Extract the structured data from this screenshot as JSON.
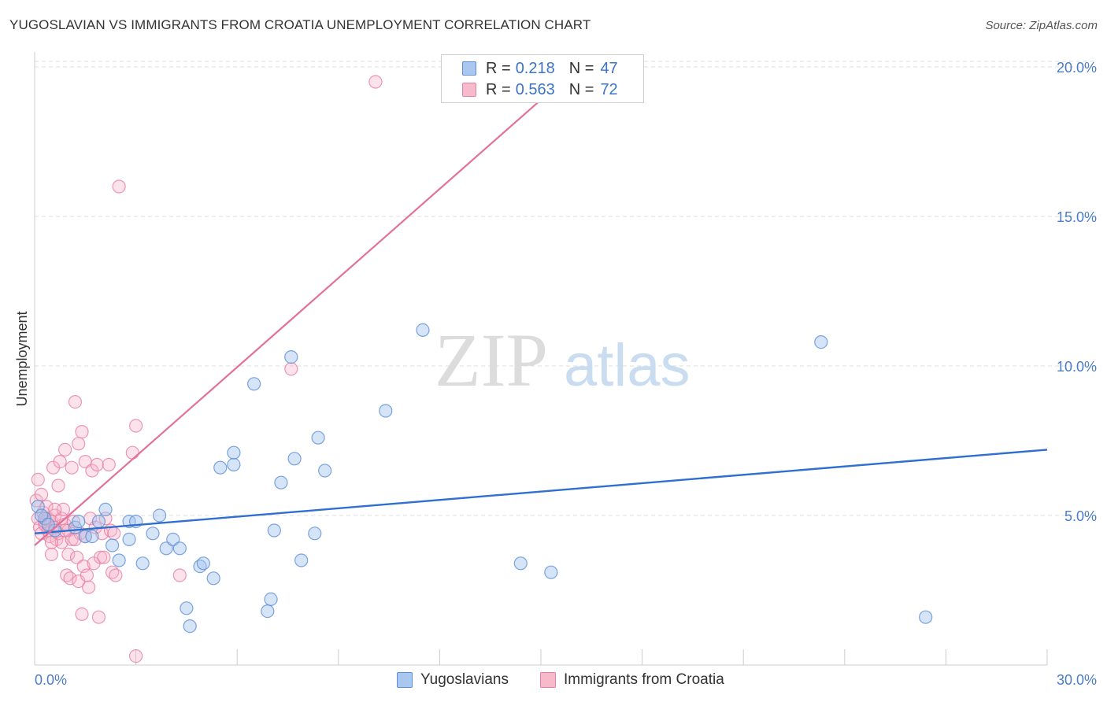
{
  "header": {
    "title": "YUGOSLAVIAN VS IMMIGRANTS FROM CROATIA UNEMPLOYMENT CORRELATION CHART",
    "source": "Source: ZipAtlas.com"
  },
  "watermark": {
    "part1": "ZIP",
    "part2": "atlas"
  },
  "legend": {
    "rows": [
      {
        "r_label": "R =",
        "r_value": "0.218",
        "n_label": "N =",
        "n_value": "47",
        "color": "#a9c7ef",
        "border": "#5b8fd6"
      },
      {
        "r_label": "R =",
        "r_value": "0.563",
        "n_label": "N =",
        "n_value": "72",
        "color": "#f7b9cc",
        "border": "#e87fa0"
      }
    ]
  },
  "bottom_legend": {
    "series1": "Yugoslavians",
    "series2": "Immigrants from Croatia"
  },
  "colors": {
    "blue_fill": "rgba(163,196,238,0.45)",
    "blue_stroke": "#5b8fd6",
    "blue_line": "#2f6fcf",
    "pink_fill": "rgba(246,176,198,0.35)",
    "pink_stroke": "#e57fa2",
    "pink_line": "#e2709a",
    "grid": "#dddddd",
    "tick_text": "#4a7cc9"
  },
  "chart_data": {
    "type": "scatter",
    "title": "YUGOSLAVIAN VS IMMIGRANTS FROM CROATIA UNEMPLOYMENT CORRELATION CHART",
    "xlabel": "",
    "ylabel": "Unemployment",
    "xlim": [
      0,
      30
    ],
    "ylim": [
      0,
      20.5
    ],
    "x_tick_labels": [
      "0.0%",
      "30.0%"
    ],
    "y_ticks": [
      5,
      10,
      15,
      20
    ],
    "y_tick_labels": [
      "5.0%",
      "10.0%",
      "15.0%",
      "20.0%"
    ],
    "grid": true,
    "legend_position": "top-center",
    "series": [
      {
        "name": "Yugoslavians",
        "R": 0.218,
        "N": 47,
        "trend": {
          "x0": 0.0,
          "y0": 4.4,
          "x1": 30.0,
          "y1": 7.2
        },
        "points": [
          [
            0.1,
            5.3
          ],
          [
            0.3,
            4.9
          ],
          [
            0.6,
            4.5
          ],
          [
            1.2,
            4.6
          ],
          [
            1.3,
            4.8
          ],
          [
            1.5,
            4.3
          ],
          [
            1.7,
            4.3
          ],
          [
            1.9,
            4.8
          ],
          [
            2.1,
            5.2
          ],
          [
            2.3,
            4.0
          ],
          [
            2.5,
            3.5
          ],
          [
            2.8,
            4.8
          ],
          [
            2.8,
            4.2
          ],
          [
            3.0,
            4.8
          ],
          [
            3.2,
            3.4
          ],
          [
            3.5,
            4.4
          ],
          [
            3.7,
            5.0
          ],
          [
            3.9,
            3.9
          ],
          [
            4.1,
            4.2
          ],
          [
            4.3,
            3.9
          ],
          [
            4.5,
            1.9
          ],
          [
            4.6,
            1.3
          ],
          [
            4.9,
            3.3
          ],
          [
            5.0,
            3.4
          ],
          [
            5.3,
            2.9
          ],
          [
            5.5,
            6.6
          ],
          [
            5.9,
            6.7
          ],
          [
            5.9,
            7.1
          ],
          [
            6.5,
            9.4
          ],
          [
            6.9,
            1.8
          ],
          [
            7.0,
            2.2
          ],
          [
            7.1,
            4.5
          ],
          [
            7.3,
            6.1
          ],
          [
            7.6,
            10.3
          ],
          [
            7.7,
            6.9
          ],
          [
            7.9,
            3.5
          ],
          [
            8.3,
            4.4
          ],
          [
            8.4,
            7.6
          ],
          [
            8.6,
            6.5
          ],
          [
            10.4,
            8.5
          ],
          [
            11.5,
            11.2
          ],
          [
            14.4,
            3.4
          ],
          [
            15.3,
            3.1
          ],
          [
            23.3,
            10.8
          ],
          [
            26.4,
            1.6
          ],
          [
            0.2,
            5.0
          ],
          [
            0.4,
            4.7
          ]
        ]
      },
      {
        "name": "Immigrants from Croatia",
        "R": 0.563,
        "N": 72,
        "trend": {
          "x0": 0.0,
          "y0": 4.0,
          "x1": 15.0,
          "y1": 18.9
        },
        "points": [
          [
            0.05,
            5.5
          ],
          [
            0.1,
            6.2
          ],
          [
            0.1,
            4.9
          ],
          [
            0.15,
            4.6
          ],
          [
            0.2,
            4.4
          ],
          [
            0.25,
            5.1
          ],
          [
            0.3,
            4.7
          ],
          [
            0.35,
            5.3
          ],
          [
            0.4,
            4.5
          ],
          [
            0.4,
            4.9
          ],
          [
            0.45,
            4.3
          ],
          [
            0.5,
            4.8
          ],
          [
            0.5,
            3.7
          ],
          [
            0.55,
            6.6
          ],
          [
            0.6,
            5.0
          ],
          [
            0.6,
            4.6
          ],
          [
            0.65,
            4.2
          ],
          [
            0.7,
            6.0
          ],
          [
            0.7,
            4.4
          ],
          [
            0.75,
            6.8
          ],
          [
            0.8,
            4.1
          ],
          [
            0.8,
            4.9
          ],
          [
            0.85,
            5.2
          ],
          [
            0.9,
            4.7
          ],
          [
            0.9,
            7.2
          ],
          [
            0.95,
            3.0
          ],
          [
            1.0,
            3.7
          ],
          [
            1.0,
            4.5
          ],
          [
            1.05,
            2.9
          ],
          [
            1.1,
            6.6
          ],
          [
            1.1,
            4.2
          ],
          [
            1.15,
            4.8
          ],
          [
            1.2,
            8.8
          ],
          [
            1.25,
            3.6
          ],
          [
            1.3,
            2.8
          ],
          [
            1.3,
            7.4
          ],
          [
            1.35,
            4.4
          ],
          [
            1.4,
            1.7
          ],
          [
            1.4,
            7.8
          ],
          [
            1.45,
            3.3
          ],
          [
            1.5,
            4.3
          ],
          [
            1.5,
            6.8
          ],
          [
            1.55,
            3.0
          ],
          [
            1.6,
            2.6
          ],
          [
            1.65,
            4.9
          ],
          [
            1.7,
            6.5
          ],
          [
            1.75,
            3.4
          ],
          [
            1.8,
            4.6
          ],
          [
            1.85,
            6.7
          ],
          [
            1.9,
            1.6
          ],
          [
            1.95,
            3.6
          ],
          [
            2.0,
            4.4
          ],
          [
            2.05,
            3.6
          ],
          [
            2.1,
            4.9
          ],
          [
            2.2,
            6.7
          ],
          [
            2.25,
            4.5
          ],
          [
            2.3,
            3.1
          ],
          [
            2.35,
            4.4
          ],
          [
            2.4,
            3.0
          ],
          [
            2.5,
            16.0
          ],
          [
            2.9,
            7.1
          ],
          [
            3.0,
            0.3
          ],
          [
            3.0,
            8.0
          ],
          [
            4.3,
            3.0
          ],
          [
            7.6,
            9.9
          ],
          [
            10.1,
            19.5
          ],
          [
            0.3,
            4.8
          ],
          [
            0.6,
            5.2
          ],
          [
            0.9,
            4.5
          ],
          [
            1.2,
            4.2
          ],
          [
            0.2,
            5.7
          ],
          [
            0.5,
            4.1
          ]
        ]
      }
    ]
  }
}
